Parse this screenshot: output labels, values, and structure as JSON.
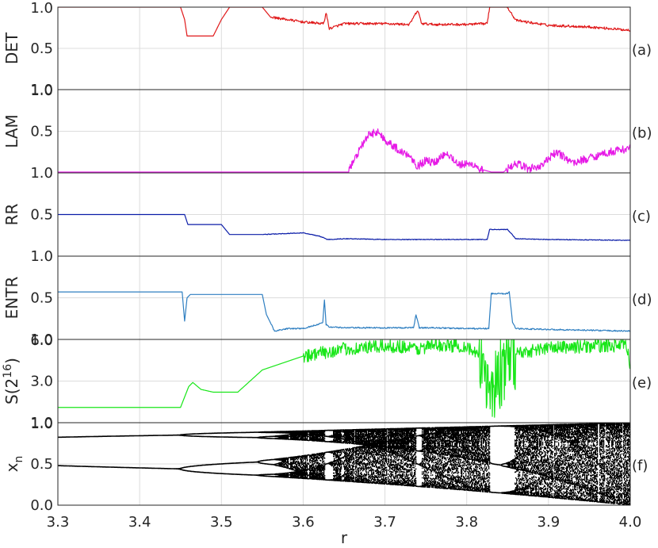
{
  "chart_data": {
    "type": "line",
    "xlabel": "r",
    "x_ticks": [
      "3.3",
      "3.4",
      "3.5",
      "3.6",
      "3.7",
      "3.8",
      "3.9",
      "4.0"
    ],
    "xlim": [
      3.3,
      4.0
    ],
    "grid": true,
    "panels": [
      {
        "id": "a",
        "label": "(a)",
        "ylabel": "DET",
        "ytick_labels": [
          "1.0",
          "0.5",
          "1.0"
        ],
        "ylim": [
          0.0,
          1.0
        ],
        "color": "#e0191a",
        "series": [
          {
            "x": [
              3.3,
              3.45,
              3.455,
              3.458,
              3.49,
              3.5,
              3.51,
              3.55,
              3.56,
              3.6,
              3.625,
              3.628,
              3.632,
              3.65,
              3.7,
              3.73,
              3.74,
              3.745,
              3.76,
              3.8,
              3.825,
              3.828,
              3.85,
              3.86,
              3.9,
              3.95,
              4.0
            ],
            "y": [
              1.0,
              1.0,
              0.85,
              0.65,
              0.65,
              0.85,
              1.0,
              1.0,
              0.88,
              0.82,
              0.8,
              0.93,
              0.74,
              0.8,
              0.8,
              0.79,
              0.96,
              0.8,
              0.79,
              0.79,
              0.8,
              1.0,
              1.0,
              0.84,
              0.78,
              0.76,
              0.72
            ]
          }
        ]
      },
      {
        "id": "b",
        "label": "(b)",
        "ylabel": "LAM",
        "ytick_labels": [
          "1.0",
          "0.5",
          "1.0"
        ],
        "ylim": [
          0.0,
          1.0
        ],
        "color": "#e61ae6",
        "series": [
          {
            "x": [
              3.3,
              3.655,
              3.67,
              3.68,
              3.69,
              3.7,
              3.72,
              3.73,
              3.74,
              3.75,
              3.76,
              3.775,
              3.79,
              3.81,
              3.815,
              3.83,
              3.845,
              3.86,
              3.875,
              3.89,
              3.91,
              3.93,
              3.95,
              3.97,
              4.0
            ],
            "y": [
              0.01,
              0.01,
              0.3,
              0.45,
              0.5,
              0.4,
              0.25,
              0.22,
              0.08,
              0.15,
              0.12,
              0.25,
              0.1,
              0.1,
              0.05,
              0.01,
              0.01,
              0.12,
              0.05,
              0.08,
              0.25,
              0.12,
              0.18,
              0.24,
              0.3
            ]
          }
        ]
      },
      {
        "id": "c",
        "label": "(c)",
        "ylabel": "RR",
        "ytick_labels": [
          "0.5",
          "1.0"
        ],
        "ylim": [
          0.0,
          1.0
        ],
        "color": "#0b1da8",
        "series": [
          {
            "x": [
              3.3,
              3.455,
              3.459,
              3.5,
              3.51,
              3.55,
              3.6,
              3.62,
              3.63,
              3.65,
              3.7,
              3.8,
              3.825,
              3.828,
              3.85,
              3.86,
              3.9,
              4.0
            ],
            "y": [
              0.5,
              0.5,
              0.38,
              0.38,
              0.26,
              0.26,
              0.28,
              0.24,
              0.2,
              0.21,
              0.2,
              0.2,
              0.2,
              0.32,
              0.32,
              0.21,
              0.2,
              0.19
            ]
          }
        ]
      },
      {
        "id": "d",
        "label": "(d)",
        "ylabel": "ENTR",
        "ytick_labels": [
          "0.5",
          "1.0"
        ],
        "ylim": [
          0.0,
          1.0
        ],
        "color": "#2f7fc1",
        "series": [
          {
            "x": [
              3.3,
              3.452,
              3.455,
              3.458,
              3.462,
              3.55,
              3.555,
              3.565,
              3.58,
              3.6,
              3.624,
              3.626,
              3.628,
              3.632,
              3.65,
              3.7,
              3.735,
              3.738,
              3.742,
              3.76,
              3.8,
              3.827,
              3.83,
              3.85,
              3.852,
              3.856,
              3.86,
              3.9,
              4.0
            ],
            "y": [
              0.57,
              0.57,
              0.22,
              0.5,
              0.54,
              0.54,
              0.3,
              0.1,
              0.13,
              0.13,
              0.2,
              0.48,
              0.18,
              0.15,
              0.14,
              0.14,
              0.14,
              0.3,
              0.14,
              0.14,
              0.13,
              0.13,
              0.55,
              0.55,
              0.58,
              0.2,
              0.13,
              0.12,
              0.1
            ]
          }
        ]
      },
      {
        "id": "e",
        "label": "(e)",
        "ylabel": "S(2",
        "ylabel_sup": "16",
        "ylabel_end": ")",
        "ytick_labels": [
          "6.0",
          "3.0",
          "1.0"
        ],
        "ylim": [
          0.0,
          6.0
        ],
        "color": "#19e619",
        "series": [
          {
            "x": [
              3.3,
              3.45,
              3.46,
              3.465,
              3.475,
              3.49,
              3.52,
              3.55,
              3.6,
              3.65,
              3.7,
              3.72,
              3.74,
              3.76,
              3.8,
              3.82,
              3.83,
              3.84,
              3.85,
              3.86,
              3.9,
              3.95,
              3.995,
              4.0
            ],
            "y": [
              1.1,
              1.1,
              2.6,
              2.9,
              2.4,
              2.2,
              2.2,
              3.8,
              4.8,
              5.3,
              5.5,
              5.5,
              5.3,
              5.6,
              5.5,
              4.5,
              2.2,
              3.5,
              4.5,
              5.0,
              5.4,
              5.5,
              5.6,
              4.2
            ]
          }
        ]
      },
      {
        "id": "f",
        "label": "(f)",
        "ylabel": "x",
        "ylabel_sub": "n",
        "ytick_labels": [
          "1.0",
          "0.5",
          "0.0"
        ],
        "ylim": [
          0.0,
          1.0
        ],
        "color": "#000000",
        "type": "bifurcation",
        "map": "logistic"
      }
    ]
  }
}
